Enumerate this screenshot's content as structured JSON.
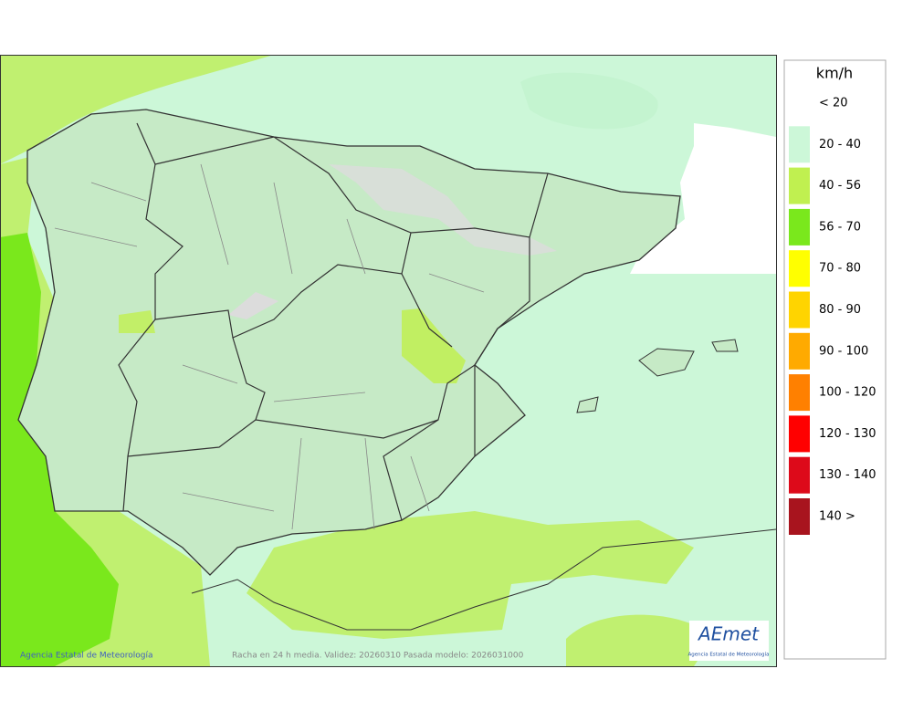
{
  "map": {
    "credit": "Agencia Estatal de Meteorología",
    "caption": "Racha en 24 h media. Validez: 20260310 Pasada modelo: 2026031000",
    "logo": "AEmet",
    "logo_subtitle": "Agencia Estatal de Meteorología"
  },
  "legend": {
    "title": "km/h",
    "items": [
      {
        "label": "< 20",
        "color": "#ffffff"
      },
      {
        "label": "20 - 40",
        "color": "#ccf7d8"
      },
      {
        "label": "40 - 56",
        "color": "#c0f050"
      },
      {
        "label": "56 - 70",
        "color": "#7ae81c"
      },
      {
        "label": "70 - 80",
        "color": "#ffff00"
      },
      {
        "label": "80 - 90",
        "color": "#ffd400"
      },
      {
        "label": "90 - 100",
        "color": "#ffaa00"
      },
      {
        "label": "100 - 120",
        "color": "#ff8000"
      },
      {
        "label": "120 - 130",
        "color": "#ff0000"
      },
      {
        "label": "130 - 140",
        "color": "#dd0a1a"
      },
      {
        "label": "140 >",
        "color": "#a8141e"
      }
    ]
  }
}
